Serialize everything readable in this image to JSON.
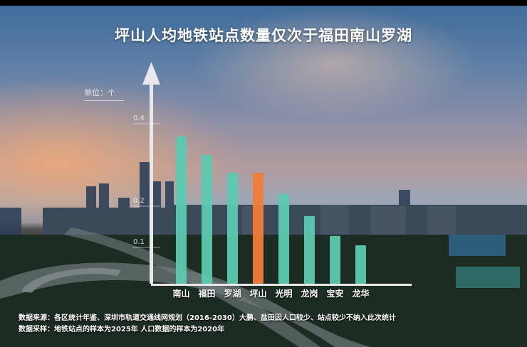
{
  "chart_data": {
    "type": "bar",
    "title": "坪山人均地铁站点数量仅次于福田南山罗湖",
    "unit_label": "单位：个",
    "categories": [
      "南山",
      "福田",
      "罗湖",
      "坪山",
      "光明",
      "龙岗",
      "宝安",
      "龙华"
    ],
    "values": [
      0.357,
      0.312,
      0.269,
      0.269,
      0.217,
      0.164,
      0.116,
      0.093
    ],
    "highlight": "坪山",
    "ticks": [
      {
        "label": "0.1",
        "value": 0.1
      },
      {
        "label": "0.2",
        "value": 0.2
      },
      {
        "label": "0.4",
        "value": 0.4
      }
    ],
    "ylim": [
      0,
      0.45
    ],
    "grid": false,
    "colors": {
      "bar": "#5cc9b0",
      "highlight": "#f07c38",
      "axis": "#e8e8ec"
    }
  },
  "footer": {
    "source": "数据来源：各区统计年鉴、深圳市轨道交通线网规划（2016-2030）大鹏、盐田因人口较少、站点较少不纳入此次统计",
    "sample": "数据采样：地铁站点的样本为2025年   人口数据的样本为2020年"
  }
}
